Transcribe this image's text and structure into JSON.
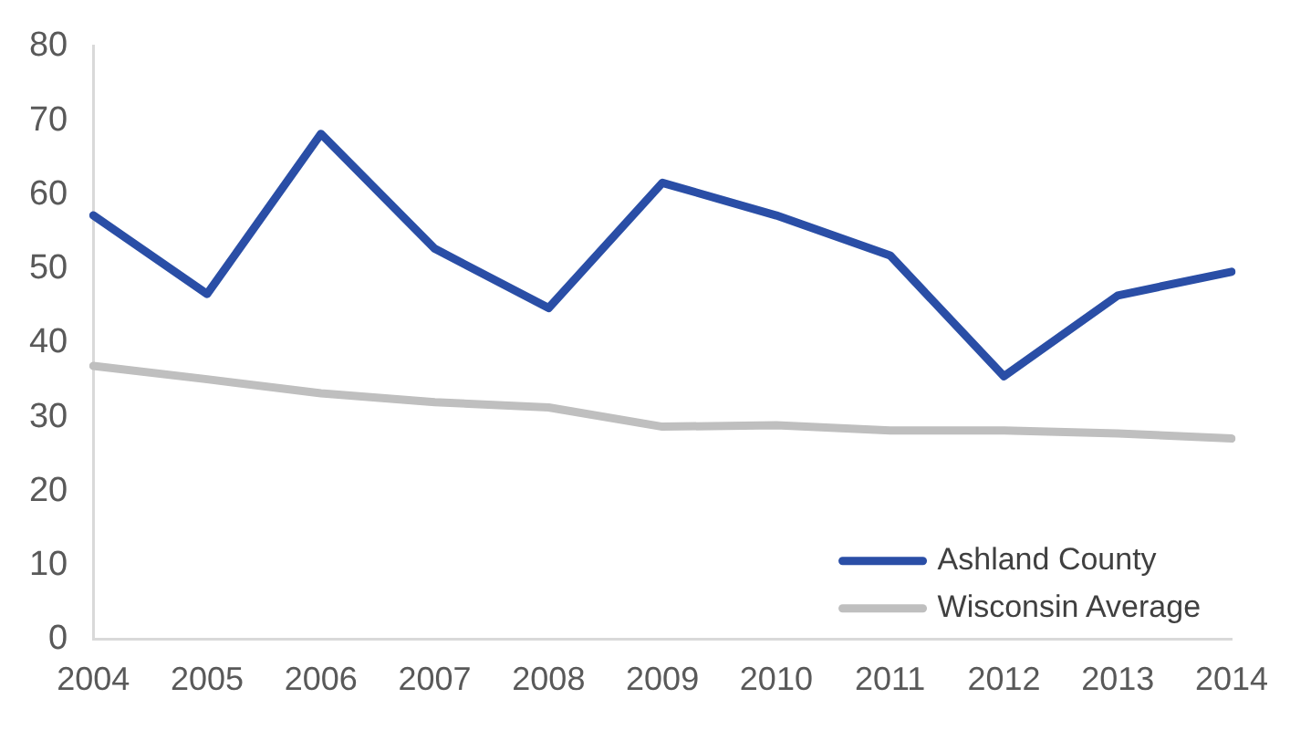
{
  "chart_data": {
    "type": "line",
    "categories": [
      "2004",
      "2005",
      "2006",
      "2007",
      "2008",
      "2009",
      "2010",
      "2011",
      "2012",
      "2013",
      "2014"
    ],
    "series": [
      {
        "name": "Ashland County",
        "color": "#2a4ea6",
        "values": [
          57.2,
          46.6,
          68.2,
          52.7,
          44.7,
          61.6,
          57.2,
          51.8,
          35.5,
          46.4,
          49.6
        ]
      },
      {
        "name": "Wisconsin Average",
        "color": "#bfbfbf",
        "values": [
          36.9,
          35.1,
          33.2,
          32.0,
          31.3,
          28.7,
          28.9,
          28.2,
          28.2,
          27.8,
          27.1
        ]
      }
    ],
    "ylim": [
      0,
      80
    ],
    "yticks": [
      0,
      10,
      20,
      30,
      40,
      50,
      60,
      70,
      80
    ],
    "grid": false,
    "legend": "bottom right",
    "marker": "none",
    "line_style": "solid"
  }
}
